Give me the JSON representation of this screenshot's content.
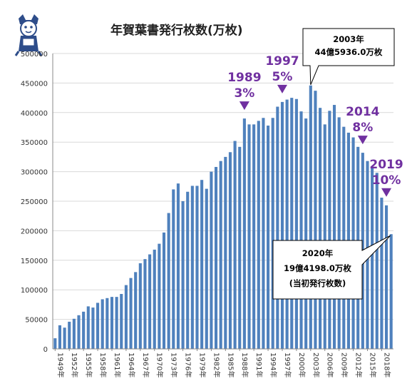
{
  "chart_data": {
    "type": "bar",
    "title": "年賀葉書発行枚数(万枚)",
    "x": [
      1949,
      1950,
      1951,
      1952,
      1953,
      1954,
      1955,
      1956,
      1957,
      1958,
      1959,
      1960,
      1961,
      1962,
      1963,
      1964,
      1965,
      1966,
      1967,
      1968,
      1969,
      1970,
      1971,
      1972,
      1973,
      1974,
      1975,
      1976,
      1977,
      1978,
      1979,
      1980,
      1981,
      1982,
      1983,
      1984,
      1985,
      1986,
      1987,
      1988,
      1989,
      1990,
      1991,
      1992,
      1993,
      1994,
      1995,
      1996,
      1997,
      1998,
      1999,
      2000,
      2001,
      2002,
      2003,
      2004,
      2005,
      2006,
      2007,
      2008,
      2009,
      2010,
      2011,
      2012,
      2013,
      2014,
      2015,
      2016,
      2017,
      2018,
      2019,
      2020
    ],
    "values": [
      18000,
      40000,
      36000,
      46000,
      51000,
      57000,
      63000,
      72000,
      70000,
      78000,
      84000,
      86000,
      88000,
      88000,
      93000,
      108000,
      120000,
      130000,
      145000,
      152000,
      160000,
      168000,
      178000,
      197000,
      230000,
      270000,
      280000,
      250000,
      266000,
      276000,
      276000,
      286000,
      271000,
      300000,
      308000,
      318000,
      325000,
      333000,
      352000,
      342000,
      390000,
      380000,
      380000,
      386000,
      391000,
      378000,
      391000,
      410000,
      418000,
      422000,
      425000,
      423000,
      402000,
      390000,
      445936,
      437000,
      408000,
      380000,
      403000,
      413000,
      392000,
      376000,
      366000,
      358000,
      342000,
      332000,
      318000,
      308000,
      298000,
      256000,
      243000,
      194198
    ],
    "xtick_labels": [
      "1949年",
      "1952年",
      "1955年",
      "1958年",
      "1961年",
      "1964年",
      "1967年",
      "1970年",
      "1973年",
      "1976年",
      "1979年",
      "1982年",
      "1985年",
      "1988年",
      "1991年",
      "1994年",
      "1997年",
      "2000年",
      "2003年",
      "2006年",
      "2009年",
      "2012年",
      "2015年",
      "2018年"
    ],
    "ytick_labels": [
      "0",
      "50000",
      "100000",
      "150000",
      "200000",
      "250000",
      "300000",
      "350000",
      "400000",
      "450000",
      "500000"
    ],
    "ylim": [
      0,
      500000
    ],
    "xlabel": "",
    "ylabel": "",
    "grid": true,
    "bar_color": "#4f81bd",
    "annotation_color": "#7030a0",
    "markers": [
      {
        "year": 1989,
        "year_label": "1989",
        "rate": "3%"
      },
      {
        "year": 1997,
        "year_label": "1997",
        "rate": "5%"
      },
      {
        "year": 2014,
        "year_label": "2014",
        "rate": "8%"
      },
      {
        "year": 2019,
        "year_label": "2019",
        "rate": "10%"
      }
    ],
    "callouts": [
      {
        "year": 2003,
        "lines": [
          "2003年",
          "44億5936.0万枚"
        ]
      },
      {
        "year": 2020,
        "lines": [
          "2020年",
          "19億4198.0万枚",
          "(当初発行枚数)"
        ]
      }
    ]
  },
  "icons": {
    "mascot": "mascot-icon"
  }
}
